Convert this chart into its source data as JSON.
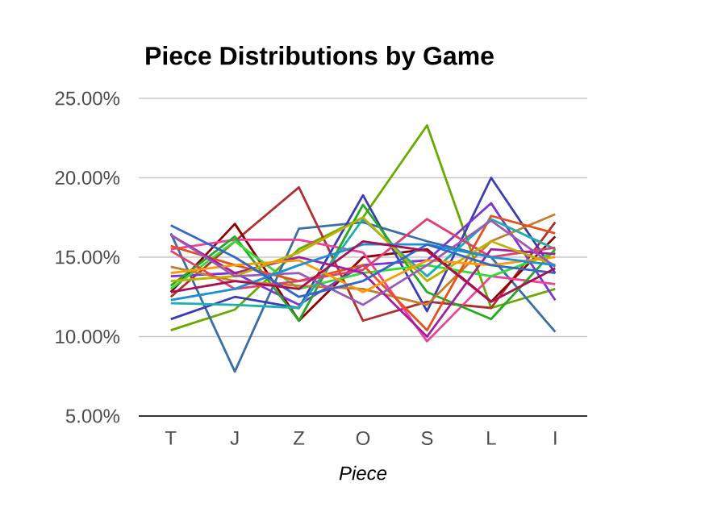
{
  "chart_data": {
    "type": "line",
    "title": "Piece Distributions by Game",
    "xlabel": "Piece",
    "categories": [
      "T",
      "J",
      "Z",
      "O",
      "S",
      "L",
      "I"
    ],
    "ylim": [
      5,
      25
    ],
    "yticks": [
      {
        "value": 5,
        "label": "5.00%"
      },
      {
        "value": 10,
        "label": "10.00%"
      },
      {
        "value": 15,
        "label": "15.00%"
      },
      {
        "value": 20,
        "label": "20.00%"
      },
      {
        "value": 25,
        "label": "25.00%"
      }
    ],
    "grid": "y",
    "marker": "none",
    "line_style": "solid",
    "series": [
      {
        "color": "#6aaa00",
        "values": [
          10.4,
          11.7,
          15.5,
          17.5,
          23.3,
          11.8,
          13.0
        ]
      },
      {
        "color": "#3a6ea5",
        "values": [
          16.5,
          7.8,
          16.8,
          17.2,
          16.0,
          15.0,
          10.3
        ]
      },
      {
        "color": "#b03030",
        "values": [
          12.5,
          16.0,
          19.4,
          11.0,
          12.2,
          11.8,
          17.2
        ]
      },
      {
        "color": "#8b0000",
        "values": [
          12.8,
          17.1,
          11.0,
          15.0,
          15.5,
          12.2,
          16.3
        ]
      },
      {
        "color": "#3c3cb4",
        "values": [
          11.1,
          12.5,
          11.8,
          18.9,
          11.6,
          20.0,
          14.0
        ]
      },
      {
        "color": "#7b35d6",
        "values": [
          13.8,
          14.0,
          12.0,
          14.5,
          14.8,
          18.4,
          12.3
        ]
      },
      {
        "color": "#f0409a",
        "values": [
          15.5,
          16.1,
          16.1,
          15.3,
          9.7,
          13.8,
          13.3
        ]
      },
      {
        "color": "#22aa22",
        "values": [
          13.2,
          16.3,
          11.0,
          18.3,
          12.8,
          11.1,
          15.5
        ]
      },
      {
        "color": "#33dd33",
        "values": [
          13.0,
          16.0,
          13.0,
          14.0,
          14.5,
          13.8,
          15.3
        ]
      },
      {
        "color": "#c87d2a",
        "values": [
          14.4,
          13.5,
          13.2,
          13.0,
          12.0,
          16.0,
          17.7
        ]
      },
      {
        "color": "#e8501a",
        "values": [
          15.7,
          14.5,
          13.5,
          14.5,
          10.4,
          17.6,
          16.5
        ]
      },
      {
        "color": "#1ab0b0",
        "values": [
          12.1,
          12.0,
          11.8,
          17.4,
          13.8,
          17.4,
          15.5
        ]
      },
      {
        "color": "#e04070",
        "values": [
          15.4,
          13.0,
          13.5,
          14.2,
          17.4,
          15.0,
          15.6
        ]
      },
      {
        "color": "#a020a0",
        "values": [
          16.4,
          14.0,
          15.0,
          14.0,
          10.0,
          15.5,
          15.2
        ]
      },
      {
        "color": "#c0b000",
        "values": [
          13.5,
          13.8,
          15.3,
          17.5,
          13.5,
          16.0,
          14.5
        ]
      },
      {
        "color": "#ff9900",
        "values": [
          14.0,
          14.5,
          14.8,
          12.8,
          14.8,
          14.5,
          15.0
        ]
      },
      {
        "color": "#9b59b6",
        "values": [
          16.4,
          13.8,
          14.0,
          12.0,
          14.5,
          17.3,
          14.4
        ]
      },
      {
        "color": "#1a90d8",
        "values": [
          12.3,
          13.0,
          14.5,
          15.8,
          15.8,
          15.0,
          14.5
        ]
      },
      {
        "color": "#3366cc",
        "values": [
          17.0,
          15.0,
          12.5,
          13.5,
          15.8,
          14.5,
          14.0
        ]
      },
      {
        "color": "#aa1155",
        "values": [
          12.8,
          13.5,
          13.0,
          16.0,
          15.4,
          12.2,
          14.3
        ]
      }
    ]
  }
}
